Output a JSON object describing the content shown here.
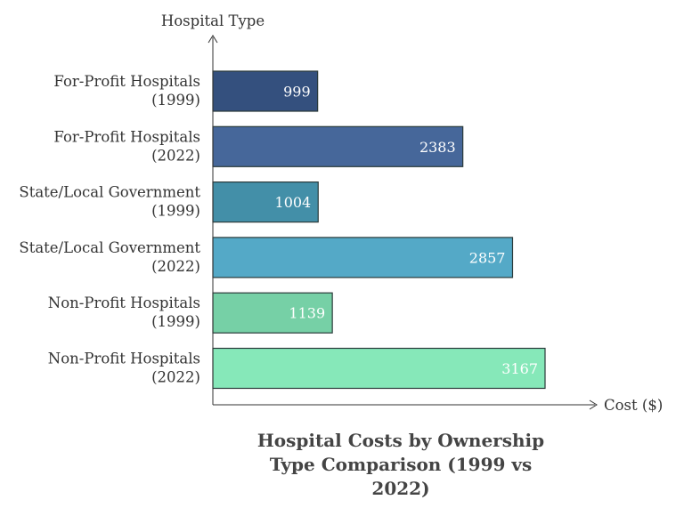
{
  "chart_data": {
    "type": "bar",
    "orientation": "horizontal",
    "title": "Hospital Costs by Ownership Type Comparison (1999 vs 2022)",
    "title_lines": [
      "Hospital Costs by Ownership",
      "Type Comparison (1999 vs",
      "2022)"
    ],
    "xlabel": "Cost ($)",
    "ylabel": "Hospital Type",
    "categories": [
      [
        "For-Profit Hospitals",
        "(1999)"
      ],
      [
        "For-Profit Hospitals",
        "(2022)"
      ],
      [
        "State/Local Government",
        "(1999)"
      ],
      [
        "State/Local Government",
        "(2022)"
      ],
      [
        "Non-Profit Hospitals",
        "(1999)"
      ],
      [
        "Non-Profit Hospitals",
        "(2022)"
      ]
    ],
    "values": [
      999,
      2383,
      1004,
      2857,
      1139,
      3167
    ],
    "colors": [
      "#34507e",
      "#46679a",
      "#438fa8",
      "#54a9c7",
      "#76d0a6",
      "#86e8b9"
    ],
    "xlim": [
      0,
      3600
    ],
    "grid": false,
    "data_labels": true
  }
}
